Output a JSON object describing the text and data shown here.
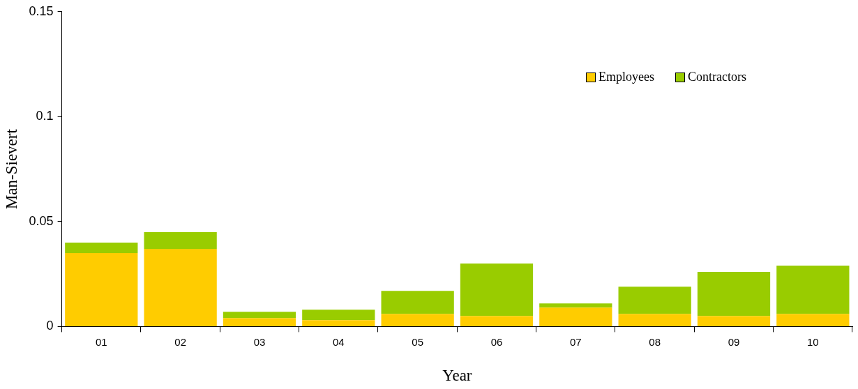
{
  "chart_data": {
    "type": "bar",
    "stacked": true,
    "xlabel": "Year",
    "ylabel": "Man-Sievert",
    "categories": [
      "01",
      "02",
      "03",
      "04",
      "05",
      "06",
      "07",
      "08",
      "09",
      "10"
    ],
    "series": [
      {
        "name": "Employees",
        "color": "#ffcc00",
        "values": [
          0.035,
          0.037,
          0.004,
          0.003,
          0.006,
          0.005,
          0.009,
          0.006,
          0.005,
          0.006
        ]
      },
      {
        "name": "Contractors",
        "color": "#99cc00",
        "values": [
          0.005,
          0.008,
          0.003,
          0.005,
          0.011,
          0.025,
          0.002,
          0.013,
          0.021,
          0.023
        ]
      }
    ],
    "ylim": [
      0,
      0.15
    ],
    "yticks": [
      0,
      0.05,
      0.1,
      0.15
    ],
    "grid": false,
    "legend": "top right"
  }
}
